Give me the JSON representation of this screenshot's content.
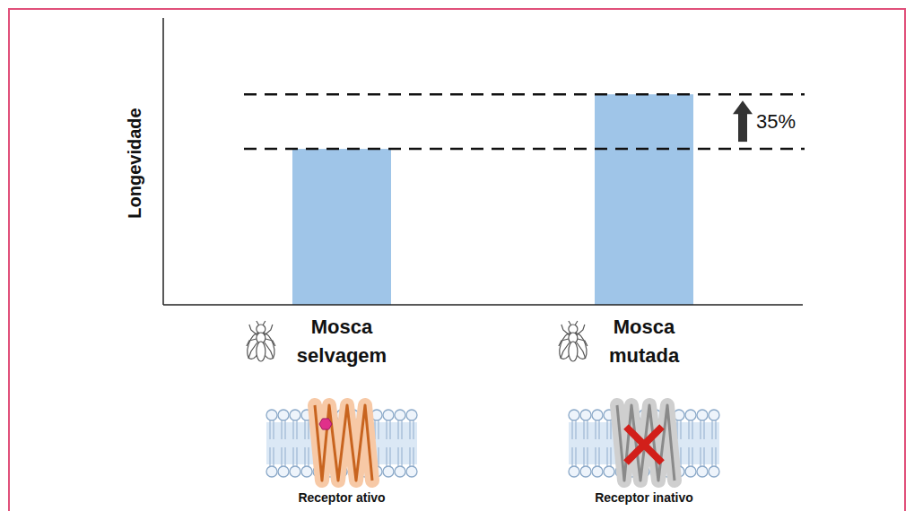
{
  "chart_data": {
    "type": "bar",
    "categories": [
      "Mosca selvagem",
      "Mosca mutada"
    ],
    "values": [
      100,
      135
    ],
    "color": "#9fc5e8",
    "ylabel": "Longevidade",
    "ylim": [
      0,
      184
    ],
    "yticks": [],
    "tick_labels": "x",
    "annotations": [
      {
        "text": "35%"
      }
    ],
    "category_notes": [
      "Receptor ativo",
      "Receptor inativo"
    ]
  }
}
